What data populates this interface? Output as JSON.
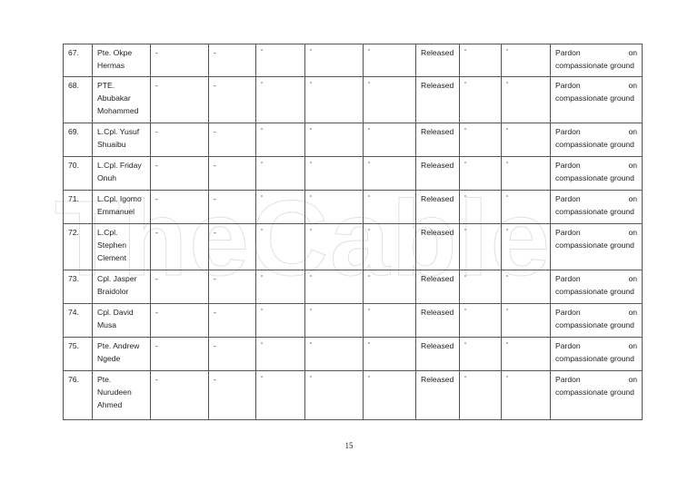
{
  "watermark": "TheCable",
  "rows": [
    {
      "no": "67.",
      "name": "Pte. Okpe Hermas",
      "c3": "-",
      "c4": "-",
      "c5": "“",
      "c6": "“",
      "c7": "“",
      "status": "Released",
      "c9": "“",
      "c10": "“",
      "remark_a": "Pardon",
      "remark_b": "on",
      "remark_c": "compassionate ground"
    },
    {
      "no": "68.",
      "name": "PTE. Abubakar Mohammed",
      "c3": "-",
      "c4": "-",
      "c5": "“",
      "c6": "“",
      "c7": "“",
      "status": "Released",
      "c9": "“",
      "c10": "“",
      "remark_a": "Pardon",
      "remark_b": "on",
      "remark_c": "compassionate ground"
    },
    {
      "no": "69.",
      "name": "L.Cpl. Yusuf Shuaibu",
      "c3": "-",
      "c4": "-",
      "c5": "“",
      "c6": "“",
      "c7": "“",
      "status": "Released",
      "c9": "“",
      "c10": "“",
      "remark_a": "Pardon",
      "remark_b": "on",
      "remark_c": "compassionate ground"
    },
    {
      "no": "70.",
      "name": "L.Cpl. Friday Onuh",
      "c3": "-",
      "c4": "-",
      "c5": "“",
      "c6": "“",
      "c7": "“",
      "status": "Released",
      "c9": "“",
      "c10": "“",
      "remark_a": "Pardon",
      "remark_b": "on",
      "remark_c": "compassionate ground"
    },
    {
      "no": "71.",
      "name": "L.Cpl. Igomo Emmanuel",
      "c3": "-",
      "c4": "-",
      "c5": "“",
      "c6": "“",
      "c7": "“",
      "status": "Released",
      "c9": "“",
      "c10": "“",
      "remark_a": "Pardon",
      "remark_b": "on",
      "remark_c": "compassionate ground"
    },
    {
      "no": "72.",
      "name": "L.Cpl. Stephen Clement",
      "c3": "-",
      "c4": "-",
      "c5": "“",
      "c6": "“",
      "c7": "“",
      "status": "Released",
      "c9": "“",
      "c10": "“",
      "remark_a": "Pardon",
      "remark_b": "on",
      "remark_c": "compassionate ground"
    },
    {
      "no": "73.",
      "name": "Cpl. Jasper Braidolor",
      "c3": "-",
      "c4": "-",
      "c5": "“",
      "c6": "“",
      "c7": "“",
      "status": "Released",
      "c9": "“",
      "c10": "“",
      "remark_a": "Pardon",
      "remark_b": "on",
      "remark_c": "compassionate ground"
    },
    {
      "no": "74.",
      "name": "Cpl. David Musa",
      "c3": "-",
      "c4": "-",
      "c5": "“",
      "c6": "“",
      "c7": "“",
      "status": "Released",
      "c9": "“",
      "c10": "“",
      "remark_a": "Pardon",
      "remark_b": "on",
      "remark_c": "compassionate ground"
    },
    {
      "no": "75.",
      "name": "Pte. Andrew Ngede",
      "c3": "-",
      "c4": "-",
      "c5": "“",
      "c6": "“",
      "c7": "“",
      "status": "Released",
      "c9": "“",
      "c10": "“",
      "remark_a": "Pardon",
      "remark_b": "on",
      "remark_c": "compassionate ground"
    },
    {
      "no": "76.",
      "name": "Pte. Nurudeen Ahmed",
      "c3": "-",
      "c4": "-",
      "c5": "“",
      "c6": "“",
      "c7": "“",
      "status": "Released",
      "c9": "“",
      "c10": "“",
      "remark_a": "Pardon",
      "remark_b": "on",
      "remark_c": "compassionate ground"
    }
  ],
  "page_number": "15"
}
